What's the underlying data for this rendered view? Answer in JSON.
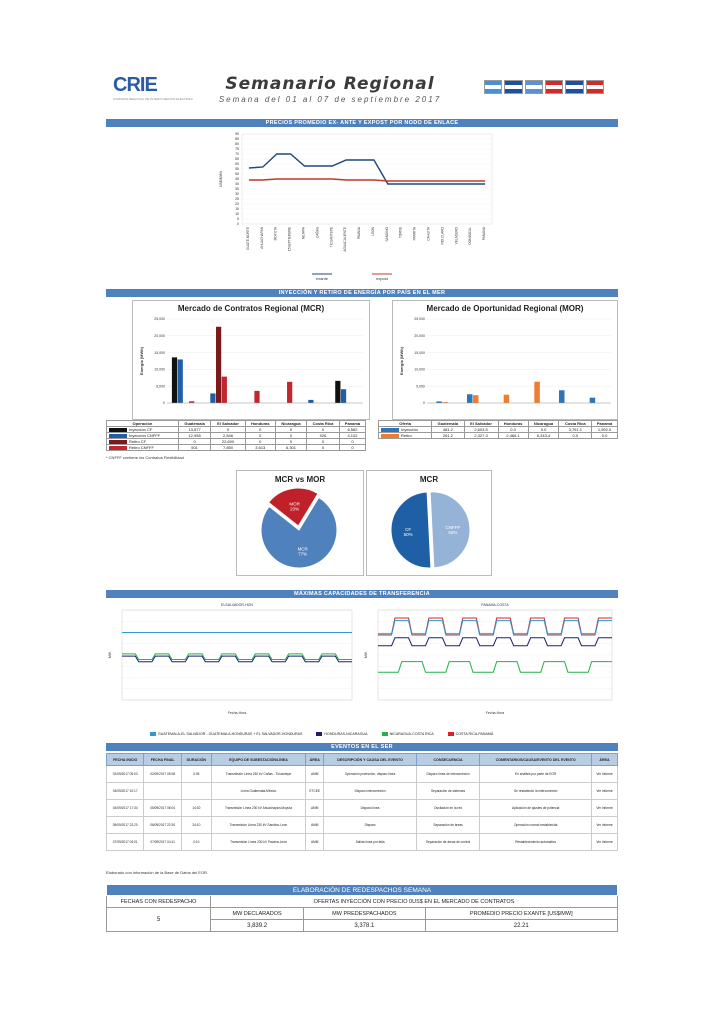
{
  "header": {
    "logo_text": "CRIE",
    "logo_sub": "COMISION REGIONAL DE INTERCONEXION ELECTRICA",
    "title": "Semanario Regional",
    "subtitle": "Semana del 01 al 07 de septiembre 2017",
    "flags": [
      "#4a90d9",
      "#1f4fa0",
      "#5c8fd6",
      "#d62a2a",
      "#1f4fa0",
      "#d62a2a"
    ]
  },
  "sections": {
    "prices": "PRECIOS PROMEDIO EX- ANTE Y EXPOST POR NODO DE ENLACE",
    "energy": "INYECCIÓN Y RETIRO DE ENERGÍA POR PAÍS EN EL MER",
    "transfer": "MÁXIMAS CAPACIDADES DE TRANSFERENCIA",
    "events": "EVENTOS EN EL SER"
  },
  "price_chart": {
    "ylabel": "US$/MWh",
    "yticks": [
      "90",
      "85",
      "80",
      "75",
      "70",
      "65",
      "60",
      "55",
      "50",
      "45",
      "40",
      "35",
      "30",
      "25",
      "20",
      "15",
      "10",
      "5",
      "0"
    ],
    "nodes": [
      "GUATE-NORTE",
      "AHUACHAPAN",
      "MOYUTA",
      "15SEPTIEMBRE",
      "NEJAPA",
      "CAÑAS",
      "TICUANTEPE",
      "AGUACALIENTE",
      "PAVANA",
      "LEON",
      "SANDINO",
      "TORRE",
      "PARRITA",
      "CAHUITA",
      "RIO CLARO",
      "VELADERO",
      "DOMINICAL",
      "PANAMA"
    ],
    "legend": [
      "exante",
      "expost"
    ],
    "exante": [
      56,
      57,
      70,
      70,
      58,
      58,
      58,
      64,
      64,
      64,
      40,
      40,
      40,
      40,
      40,
      40,
      40,
      40
    ],
    "expost": [
      44,
      44,
      45,
      45,
      45,
      45,
      45,
      44,
      44,
      44,
      43,
      43,
      43,
      43,
      43,
      43,
      43,
      43
    ],
    "colors": {
      "exante": "#1f497d",
      "expost": "#c0392b"
    }
  },
  "mcr": {
    "title": "Mercado de Contratos Regional (MCR)",
    "ylabel": "Energía (MWh)",
    "yticks": [
      "25,000",
      "20,000",
      "15,000",
      "10,000",
      "5,000",
      "0"
    ],
    "countries": [
      "Guatemala",
      "El Salvador",
      "Honduras",
      "Nicaragua",
      "Costa Rica",
      "Panamá"
    ],
    "table_header": [
      "Operación",
      "Guatemala",
      "El Salvador",
      "Honduras",
      "Nicaragua",
      "Costa Rica",
      "Panamá"
    ],
    "rows": [
      {
        "name": "Inyección CF",
        "color": "#111111",
        "values": [
          "13,577",
          "0",
          "0",
          "0",
          "0",
          "6,582"
        ]
      },
      {
        "name": "Inyección CNFFF",
        "color": "#1f5fa6",
        "values": [
          "12,958",
          "2,846",
          "0",
          "0",
          "926",
          "4,102"
        ]
      },
      {
        "name": "Retiro CF",
        "color": "#7b1a1a",
        "values": [
          "0",
          "22,690",
          "0",
          "0",
          "0",
          "0"
        ]
      },
      {
        "name": "Retiro CNFFF",
        "color": "#c0282d",
        "values": [
          "501",
          "7,850",
          "3,613",
          "6,301",
          "0",
          "0"
        ]
      }
    ],
    "bars": [
      [
        13577,
        12958,
        0,
        501
      ],
      [
        0,
        2846,
        22690,
        7850
      ],
      [
        0,
        0,
        0,
        3613
      ],
      [
        0,
        0,
        0,
        6301
      ],
      [
        0,
        926,
        0,
        0
      ],
      [
        6582,
        4102,
        0,
        0
      ]
    ],
    "note": "* CNFFF contiene los Contratos Flexibilidad"
  },
  "mor": {
    "title": "Mercado de Oportunidad Regional (MOR)",
    "ylabel": "Energía (MWh)",
    "yticks": [
      "25,000",
      "20,000",
      "15,000",
      "10,000",
      "5,000",
      "0"
    ],
    "table_header": [
      "Oferta",
      "Guatemala",
      "El Salvador",
      "Honduras",
      "Nicaragua",
      "Costa Rica",
      "Panamá"
    ],
    "rows": [
      {
        "name": "Inyección",
        "color": "#2e75b6",
        "values": [
          "481.2",
          "2,603.5",
          "0.0",
          "0.0",
          "3,791.1",
          "1,592.0"
        ]
      },
      {
        "name": "Retiro",
        "color": "#ed7d31",
        "values": [
          "261.2",
          "2,327.3",
          "2,466.1",
          "6,343.4",
          "0.0",
          "0.0"
        ]
      }
    ],
    "bars": [
      [
        481.2,
        261.2
      ],
      [
        2603.5,
        2327.3
      ],
      [
        0,
        2466.1
      ],
      [
        0,
        6343.4
      ],
      [
        3791.1,
        0
      ],
      [
        1592,
        0
      ]
    ]
  },
  "pie1": {
    "title": "MCR vs MOR",
    "slices": [
      {
        "label": "MOR",
        "pct": "23%",
        "value": 23,
        "color": "#c0202a"
      },
      {
        "label": "MCR",
        "pct": "77%",
        "value": 77,
        "color": "#4f81bd"
      }
    ]
  },
  "pie2": {
    "title": "MCR",
    "slices": [
      {
        "label": "CNFFF",
        "pct": "50%",
        "value": 50,
        "color": "#95b3d7"
      },
      {
        "label": "CF",
        "pct": "50%",
        "value": 50,
        "color": "#1f5fa6"
      }
    ]
  },
  "transfer": {
    "left_title": "ELSALVADOR-HON",
    "right_title": "PANAMA-COSTA",
    "ylabel": "MW",
    "xlabel": "Fecha-Hora",
    "legend": [
      {
        "label": "GUATEMALA-EL SALVADOR - GUATEMALA-HONDURAS + EL SALVADOR-HONDURAS",
        "color": "#2e9ad0"
      },
      {
        "label": "HONDURAS-NICARAGUA",
        "color": "#1f1f6b"
      },
      {
        "label": "NICARAGUA-COSTA RICA",
        "color": "#22b14c"
      },
      {
        "label": "COSTA RICA-PANAMÁ",
        "color": "#e02020"
      }
    ]
  },
  "events": {
    "headers": [
      "FECHA INICIO",
      "FECHA FINAL",
      "DURACIÓN",
      "EQUIPO DE SUBESTACIÓN/LÍNEA",
      "ÁREA",
      "DESCRIPCIÓN Y CAUSA DEL EVENTO",
      "CONSECUENCIA",
      "COMENTARIOS/CAUSA/EVENTO DEL EVENTO",
      "ÁREA"
    ],
    "rows": [
      [
        "02/09/2017 05:03",
        "02/09/2017 05:08",
        "0:05",
        "Transmisión Línea 230 kV Cañas - Ticuantepe",
        "AMM",
        "Operación protección, disparo línea",
        "Disparo línea de interconexión",
        "En análisis por parte de EOR",
        "Ver informe"
      ],
      [
        "04/09/2017 10:17",
        "",
        "",
        "Línea Guatemala-México",
        "ETCEE",
        "Disparo interconexión",
        "Separación de sistemas",
        "Se restableció la interconexión",
        "Ver informe"
      ],
      [
        "04/09/2017 17:34",
        "05/09/2017 08:04",
        "14:30",
        "Transmisión Línea 230 kV Ahuachapán-Moyuta",
        "AMM",
        "Disparo línea",
        "Oscilación en la red",
        "Aplicación de ajustes de potencia",
        "Ver informe"
      ],
      [
        "05/09/2017 22:20",
        "06/09/2017 22:30",
        "24:10",
        "Transmisión Línea 230 kV Sandino-Leon",
        "AMM",
        "Disparo",
        "Separación de áreas",
        "Operación normal restablecida",
        "Ver informe"
      ],
      [
        "07/09/2017 04:01",
        "07/09/2017 04:11",
        "0:10",
        "Transmisión Línea 230 kV Pavana-Leon",
        "AMM",
        "Salida línea por falla",
        "Separación de áreas de control",
        "Restablecimiento automático",
        "Ver informe"
      ]
    ],
    "note": "Elaborado con información de la Base de Datos del EOR."
  },
  "redesp": {
    "title": "ELABORACIÓN DE REDESPACHOS SEMANA",
    "col1": "FECHAS CON REDESPACHO",
    "col2": "OFERTAS INYECCIÓN CON PRECIO 0US$ EN EL MERCADO DE CONTRATOS",
    "sub": [
      "MW DECLARADOS",
      "MW PREDESPACHADOS",
      "PROMEDIO PRECIO EXANTE [US$/MW]"
    ],
    "count": "5",
    "values": [
      "3,839.2",
      "3,378.1",
      "22.21"
    ]
  }
}
